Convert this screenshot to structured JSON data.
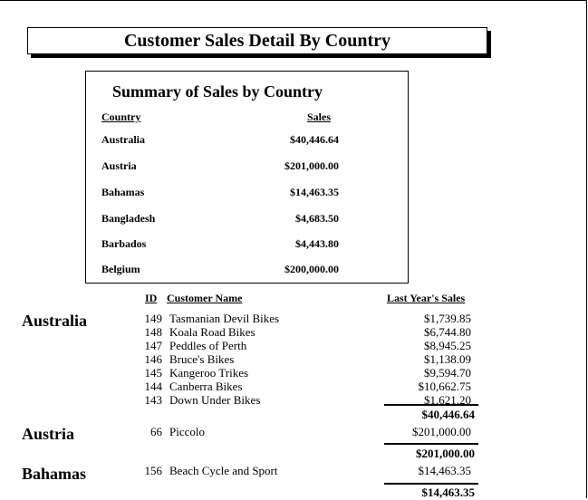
{
  "report": {
    "title": "Customer Sales Detail By Country"
  },
  "summary": {
    "title": "Summary of Sales by Country",
    "col_country": "Country",
    "col_sales": "Sales",
    "rows": [
      {
        "country": "Australia",
        "sales": "$40,446.64"
      },
      {
        "country": "Austria",
        "sales": "$201,000.00"
      },
      {
        "country": "Bahamas",
        "sales": "$14,463.35"
      },
      {
        "country": "Bangladesh",
        "sales": "$4,683.50"
      },
      {
        "country": "Barbados",
        "sales": "$4,443.80"
      },
      {
        "country": "Belgium",
        "sales": "$200,000.00"
      }
    ]
  },
  "detail": {
    "col_id": "ID",
    "col_name": "Customer Name",
    "col_sales": "Last Year's Sales",
    "groups": [
      {
        "country": "Australia",
        "rows": [
          {
            "id": "149",
            "name": "Tasmanian Devil Bikes",
            "amount": "$1,739.85"
          },
          {
            "id": "148",
            "name": "Koala Road Bikes",
            "amount": "$6,744.80"
          },
          {
            "id": "147",
            "name": "Peddles of Perth",
            "amount": "$8,945.25"
          },
          {
            "id": "146",
            "name": "Bruce's Bikes",
            "amount": "$1,138.09"
          },
          {
            "id": "145",
            "name": "Kangeroo Trikes",
            "amount": "$9,594.70"
          },
          {
            "id": "144",
            "name": "Canberra Bikes",
            "amount": "$10,662.75"
          },
          {
            "id": "143",
            "name": "Down Under Bikes",
            "amount": "$1,621.20"
          }
        ],
        "total": "$40,446.64"
      },
      {
        "country": "Austria",
        "rows": [
          {
            "id": "66",
            "name": "Piccolo",
            "amount": "$201,000.00"
          }
        ],
        "total": "$201,000.00"
      },
      {
        "country": "Bahamas",
        "rows": [
          {
            "id": "156",
            "name": "Beach Cycle and Sport",
            "amount": "$14,463.35"
          }
        ],
        "total": "$14,463.35"
      }
    ]
  }
}
